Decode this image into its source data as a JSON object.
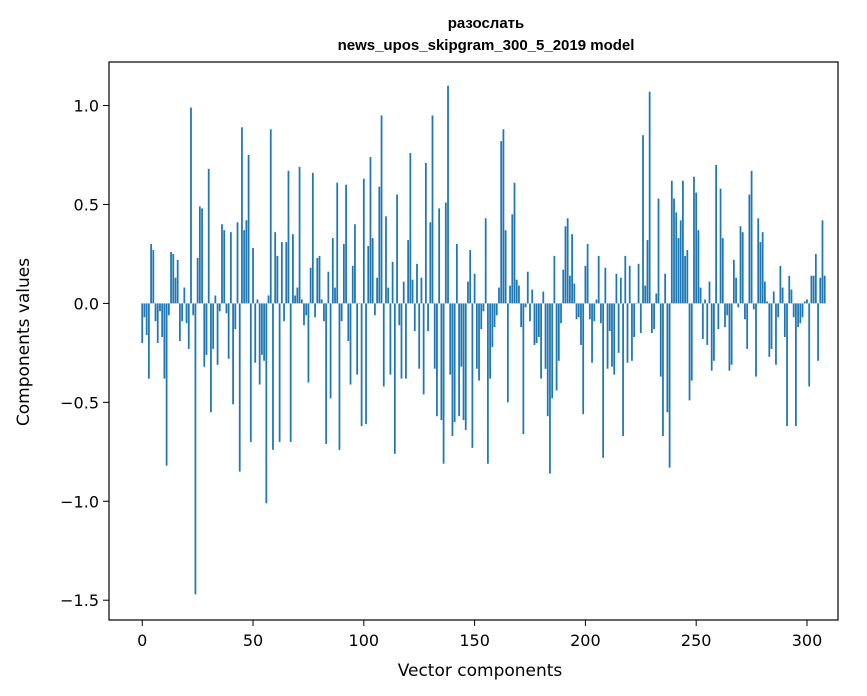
{
  "chart_data": {
    "type": "bar",
    "title": "разослать",
    "subtitle": "news_upos_skipgram_300_5_2019 model",
    "xlabel": "Vector components",
    "ylabel": "Components values",
    "xlim": [
      -15,
      314
    ],
    "ylim": [
      -1.6,
      1.22
    ],
    "xticks": [
      0,
      50,
      100,
      150,
      200,
      250,
      300
    ],
    "xtick_labels": [
      "0",
      "50",
      "100",
      "150",
      "200",
      "250",
      "300"
    ],
    "yticks": [
      -1.5,
      -1.0,
      -0.5,
      0.0,
      0.5,
      1.0
    ],
    "ytick_labels": [
      "−1.5",
      "−1.0",
      "−0.5",
      "0.0",
      "0.5",
      "1.0"
    ],
    "grid": false,
    "legend": "none",
    "bar_color": "#1f77b4",
    "values": [
      -0.2,
      -0.07,
      -0.16,
      -0.38,
      0.3,
      0.27,
      -0.09,
      -0.2,
      -0.04,
      -0.17,
      -0.38,
      -0.82,
      -0.06,
      0.26,
      0.25,
      0.13,
      0.22,
      -0.19,
      -0.09,
      0.08,
      -0.1,
      -0.23,
      0.99,
      -0.06,
      -1.47,
      0.23,
      0.49,
      0.48,
      -0.32,
      -0.26,
      0.68,
      -0.55,
      -0.23,
      0.04,
      -0.31,
      -0.04,
      0.4,
      0.37,
      -0.05,
      -0.28,
      0.36,
      -0.51,
      -0.13,
      0.41,
      -0.85,
      0.89,
      0.37,
      0.42,
      0.75,
      -0.7,
      0.28,
      -0.3,
      0.02,
      -0.41,
      -0.26,
      -0.29,
      -1.01,
      0.04,
      0.88,
      -0.74,
      0.36,
      0.24,
      -0.7,
      0.31,
      -0.09,
      0.31,
      0.67,
      -0.7,
      0.35,
      0.04,
      0.08,
      0.69,
      0.02,
      -0.11,
      -0.06,
      -0.4,
      0.18,
      0.66,
      -0.07,
      0.23,
      0.24,
      0.02,
      -0.09,
      -0.71,
      0.16,
      -0.48,
      0.33,
      0.08,
      0.61,
      -0.74,
      -0.09,
      0.3,
      0.6,
      -0.19,
      -0.41,
      0.19,
      0.4,
      -0.36,
      0.0,
      -0.62,
      0.63,
      -0.61,
      0.29,
      0.74,
      0.33,
      -0.06,
      0.13,
      0.59,
      0.95,
      -0.42,
      0.44,
      0.08,
      -0.36,
      0.21,
      -0.76,
      0.55,
      -0.11,
      -0.38,
      0.11,
      -0.38,
      0.32,
      0.76,
      0.12,
      -0.14,
      0.2,
      -0.33,
      0.13,
      -0.46,
      0.71,
      -0.14,
      0.41,
      0.95,
      -0.33,
      -0.57,
      0.48,
      -0.59,
      -0.81,
      0.51,
      1.1,
      -0.36,
      -0.67,
      -0.6,
      0.3,
      -0.57,
      -0.32,
      -0.59,
      -0.64,
      0.11,
      0.27,
      -0.73,
      0.15,
      -0.33,
      -0.39,
      -0.13,
      -0.04,
      0.43,
      -0.81,
      -0.38,
      -0.22,
      -0.12,
      -0.06,
      0.08,
      0.82,
      0.88,
      0.37,
      -0.5,
      0.09,
      0.45,
      0.61,
      0.12,
      0.09,
      -0.12,
      -0.66,
      -0.02,
      0.16,
      -0.09,
      0.07,
      -0.21,
      -0.2,
      -0.17,
      -0.38,
      0.06,
      -0.33,
      -0.57,
      -0.86,
      -0.48,
      0.24,
      -0.44,
      -0.29,
      -0.1,
      0.17,
      0.39,
      0.43,
      0.14,
      0.35,
      0.1,
      -0.08,
      -0.07,
      -0.21,
      -0.56,
      0.19,
      0.3,
      -0.08,
      -0.3,
      -0.09,
      0.02,
      0.24,
      -0.1,
      -0.78,
      0.18,
      -0.33,
      -0.14,
      -0.32,
      -0.36,
      0.15,
      -0.25,
      0.13,
      -0.67,
      0.24,
      -0.3,
      0.19,
      -0.29,
      -0.17,
      0.0,
      0.2,
      -0.15,
      0.85,
      0.09,
      0.32,
      1.07,
      -0.15,
      -0.13,
      0.05,
      0.53,
      -0.37,
      -0.67,
      0.15,
      -0.55,
      -0.83,
      0.62,
      0.53,
      0.46,
      0.33,
      0.42,
      0.62,
      0.24,
      0.27,
      -0.49,
      -0.39,
      0.64,
      0.56,
      0.37,
      0.08,
      -0.18,
      0.02,
      -0.21,
      0.11,
      -0.34,
      -0.29,
      0.7,
      -0.13,
      0.58,
      0.33,
      -0.12,
      -0.06,
      -0.34,
      -0.31,
      0.22,
      0.13,
      -0.02,
      0.39,
      0.36,
      -0.08,
      -0.23,
      0.55,
      0.67,
      -0.03,
      -0.37,
      0.43,
      0.31,
      0.36,
      0.11,
      0.01,
      -0.27,
      -0.23,
      0.06,
      -0.31,
      -0.07,
      0.19,
      0.08,
      -0.17,
      -0.62,
      0.14,
      0.07,
      -0.07,
      -0.62,
      -0.12,
      -0.1,
      -0.07,
      0.01,
      0.02,
      -0.42,
      0.14,
      0.14,
      0.25,
      -0.29,
      0.13,
      0.42,
      0.14
    ]
  }
}
